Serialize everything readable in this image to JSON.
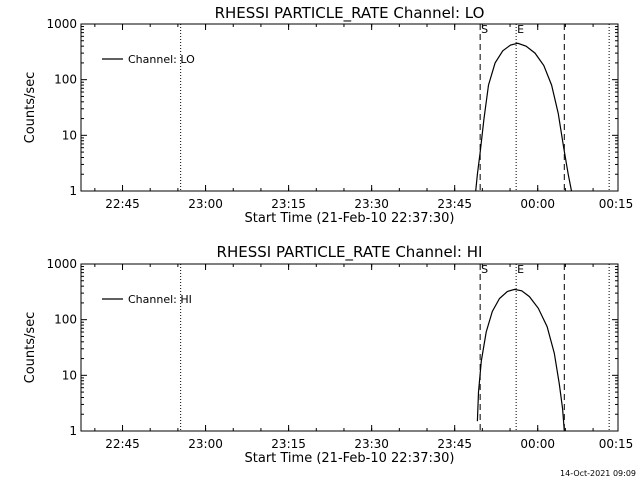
{
  "footer_timestamp": "14-Oct-2021 09:09",
  "chart_data": [
    {
      "type": "line",
      "title": "RHESSI PARTICLE_RATE Channel: LO",
      "xlabel": "Start Time (21-Feb-10 22:37:30)",
      "ylabel": "Counts/sec",
      "yscale": "log",
      "ylim": [
        1,
        1000
      ],
      "ytick_labels": [
        "1",
        "10",
        "100",
        "1000"
      ],
      "xlim_minutes_after_start": [
        0,
        97
      ],
      "xtick_labels": [
        "22:45",
        "23:00",
        "23:15",
        "23:30",
        "23:45",
        "00:00",
        "00:15"
      ],
      "xtick_minutes_after_start": [
        7.5,
        22.5,
        37.5,
        52.5,
        67.5,
        82.5,
        97.5
      ],
      "legend": {
        "label": "Channel: LO",
        "placement": "top-left"
      },
      "grid": false,
      "dotted_lines_minutes_after_start": [
        18,
        95.4
      ],
      "dashed_lines_minutes_after_start": [
        72.1,
        87.3
      ],
      "markers": [
        {
          "label": "S",
          "minutes_after_start": 72.1
        },
        {
          "label": "E",
          "minutes_after_start": 78.6
        }
      ],
      "series": [
        {
          "name": "Channel: LO",
          "x_minutes_after_start": [
            71.3,
            71.6,
            72.1,
            72.8,
            73.6,
            74.8,
            76.2,
            77.6,
            78.9,
            80.4,
            82.0,
            83.6,
            85.0,
            86.2,
            87.2,
            88.0,
            88.6
          ],
          "y": [
            1.0,
            2.0,
            5.0,
            20,
            80,
            200,
            330,
            420,
            450,
            400,
            300,
            180,
            80,
            25,
            6,
            2,
            1.0
          ]
        }
      ]
    },
    {
      "type": "line",
      "title": "RHESSI PARTICLE_RATE Channel: HI",
      "xlabel": "Start Time (21-Feb-10 22:37:30)",
      "ylabel": "Counts/sec",
      "yscale": "log",
      "ylim": [
        1,
        1000
      ],
      "ytick_labels": [
        "1",
        "10",
        "100",
        "1000"
      ],
      "xlim_minutes_after_start": [
        0,
        97
      ],
      "xtick_labels": [
        "22:45",
        "23:00",
        "23:15",
        "23:30",
        "23:45",
        "00:00",
        "00:15"
      ],
      "xtick_minutes_after_start": [
        7.5,
        22.5,
        37.5,
        52.5,
        67.5,
        82.5,
        97.5
      ],
      "legend": {
        "label": "Channel: HI",
        "placement": "top-left"
      },
      "grid": false,
      "dotted_lines_minutes_after_start": [
        18,
        95.4
      ],
      "dashed_lines_minutes_after_start": [
        72.1,
        87.3
      ],
      "markers": [
        {
          "label": "S",
          "minutes_after_start": 72.1
        },
        {
          "label": "E",
          "minutes_after_start": 78.6
        }
      ],
      "series": [
        {
          "name": "Channel: HI",
          "x_minutes_after_start": [
            71.6,
            71.8,
            72.3,
            73.2,
            74.3,
            75.6,
            77.0,
            78.3,
            79.6,
            81.0,
            82.6,
            84.2,
            85.5,
            86.4,
            87.0,
            87.3
          ],
          "y": [
            1.5,
            5,
            18,
            60,
            140,
            240,
            320,
            350,
            330,
            260,
            160,
            75,
            25,
            7,
            2.5,
            1.0
          ]
        }
      ]
    }
  ]
}
